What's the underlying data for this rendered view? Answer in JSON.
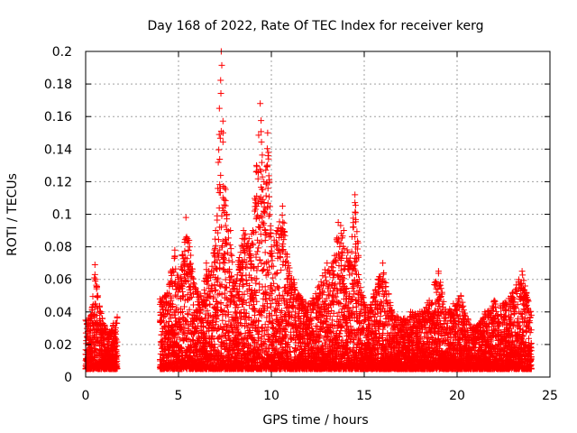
{
  "chart_data": {
    "type": "scatter",
    "title": "Day 168 of 2022, Rate Of TEC Index for receiver kerg",
    "xlabel": "GPS time / hours",
    "ylabel": "ROTI / TECUs",
    "xlim": [
      0,
      25
    ],
    "ylim": [
      0,
      0.2
    ],
    "grid": true,
    "marker": "+",
    "series_color": "#ff0000",
    "x_ticks": [
      0,
      5,
      10,
      15,
      20,
      25
    ],
    "x_tick_labels": [
      "0",
      "5",
      "10",
      "15",
      "20",
      "25"
    ],
    "y_ticks": [
      0,
      0.02,
      0.04,
      0.06,
      0.08,
      0.1,
      0.12,
      0.14,
      0.16,
      0.18,
      0.2
    ],
    "y_tick_labels": [
      "0",
      "0.02",
      "0.04",
      "0.06",
      "0.08",
      "0.1",
      "0.12",
      "0.14",
      "0.16",
      "0.18",
      "0.2"
    ],
    "series": [
      {
        "name": "ROTI",
        "envelope": [
          [
            0.0,
            0.035
          ],
          [
            0.3,
            0.038
          ],
          [
            0.5,
            0.069
          ],
          [
            0.8,
            0.04
          ],
          [
            1.0,
            0.032
          ],
          [
            1.3,
            0.028
          ],
          [
            1.5,
            0.033
          ],
          [
            1.7,
            0.037
          ],
          [
            4.0,
            0.048
          ],
          [
            4.3,
            0.05
          ],
          [
            4.6,
            0.065
          ],
          [
            4.8,
            0.078
          ],
          [
            5.0,
            0.06
          ],
          [
            5.2,
            0.075
          ],
          [
            5.4,
            0.098
          ],
          [
            5.6,
            0.08
          ],
          [
            5.9,
            0.055
          ],
          [
            6.2,
            0.05
          ],
          [
            6.5,
            0.07
          ],
          [
            6.8,
            0.068
          ],
          [
            7.0,
            0.09
          ],
          [
            7.2,
            0.165
          ],
          [
            7.3,
            0.2
          ],
          [
            7.4,
            0.15
          ],
          [
            7.6,
            0.1
          ],
          [
            7.8,
            0.09
          ],
          [
            8.0,
            0.058
          ],
          [
            8.5,
            0.09
          ],
          [
            8.8,
            0.085
          ],
          [
            9.0,
            0.09
          ],
          [
            9.2,
            0.13
          ],
          [
            9.4,
            0.168
          ],
          [
            9.6,
            0.12
          ],
          [
            9.8,
            0.15
          ],
          [
            10.0,
            0.08
          ],
          [
            10.3,
            0.09
          ],
          [
            10.6,
            0.105
          ],
          [
            10.9,
            0.07
          ],
          [
            11.2,
            0.06
          ],
          [
            11.5,
            0.05
          ],
          [
            12.0,
            0.045
          ],
          [
            12.5,
            0.055
          ],
          [
            13.0,
            0.07
          ],
          [
            13.3,
            0.07
          ],
          [
            13.6,
            0.095
          ],
          [
            13.9,
            0.09
          ],
          [
            14.2,
            0.07
          ],
          [
            14.5,
            0.112
          ],
          [
            14.8,
            0.055
          ],
          [
            15.2,
            0.04
          ],
          [
            15.5,
            0.051
          ],
          [
            16.0,
            0.07
          ],
          [
            16.5,
            0.04
          ],
          [
            17.0,
            0.035
          ],
          [
            17.5,
            0.04
          ],
          [
            18.0,
            0.04
          ],
          [
            18.5,
            0.047
          ],
          [
            18.8,
            0.058
          ],
          [
            19.0,
            0.065
          ],
          [
            19.4,
            0.04
          ],
          [
            19.8,
            0.045
          ],
          [
            20.2,
            0.05
          ],
          [
            20.6,
            0.035
          ],
          [
            21.0,
            0.03
          ],
          [
            21.5,
            0.04
          ],
          [
            22.0,
            0.047
          ],
          [
            22.5,
            0.045
          ],
          [
            23.0,
            0.052
          ],
          [
            23.5,
            0.065
          ],
          [
            24.0,
            0.038
          ]
        ]
      }
    ]
  }
}
